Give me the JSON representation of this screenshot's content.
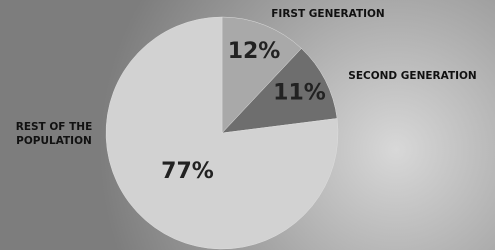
{
  "chart_data": {
    "type": "pie",
    "categories": [
      "FIRST GENERATION",
      "SECOND GENERATION",
      "REST OF THE POPULATION"
    ],
    "values": [
      12,
      11,
      77
    ],
    "value_labels": [
      "12%",
      "11%",
      "77%"
    ],
    "colors": [
      "#a9a9a9",
      "#6e6e6e",
      "#d2d2d2"
    ]
  }
}
